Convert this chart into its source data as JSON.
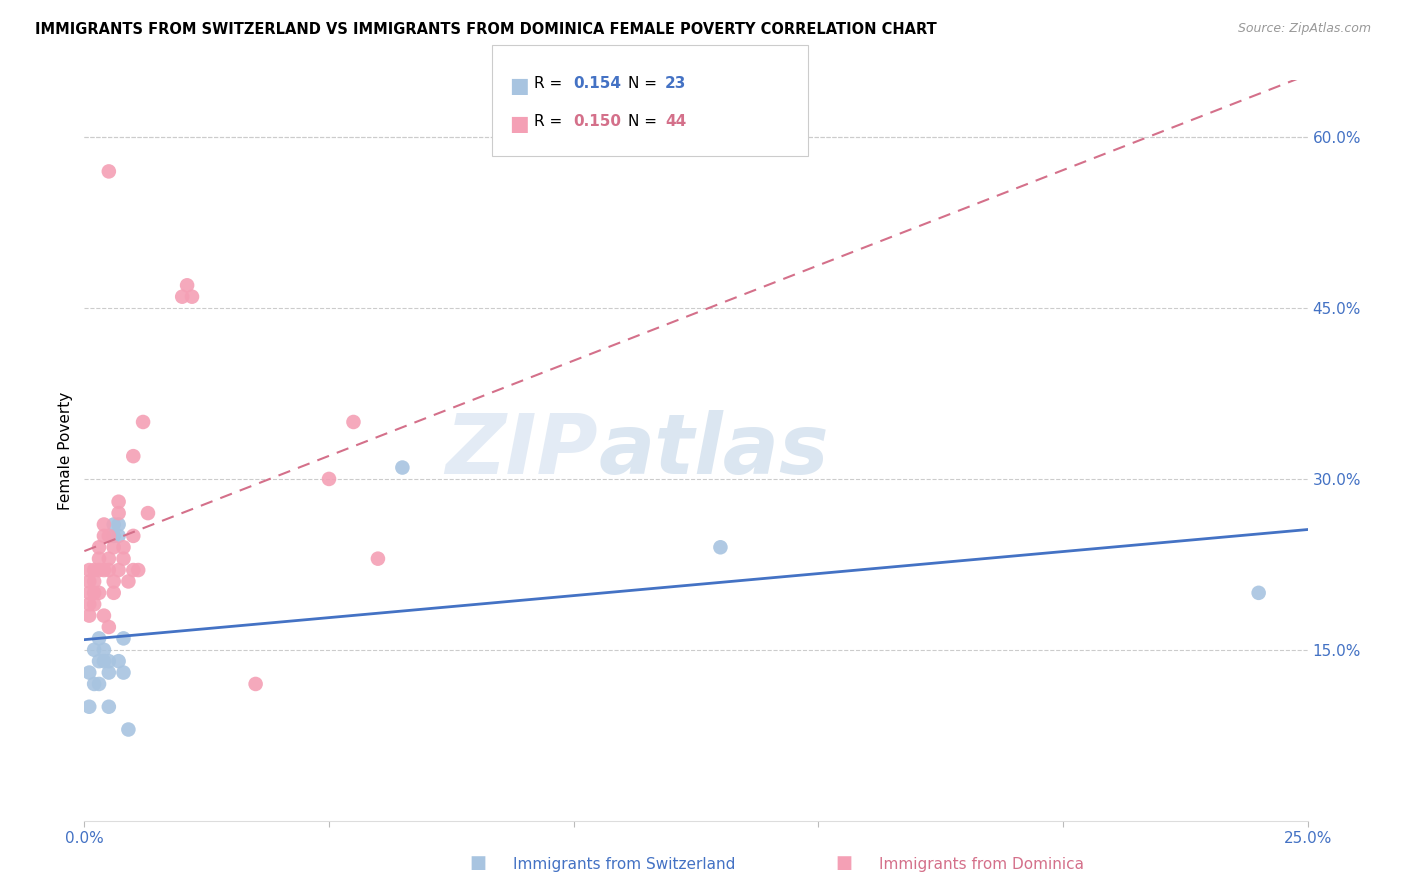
{
  "title": "IMMIGRANTS FROM SWITZERLAND VS IMMIGRANTS FROM DOMINICA FEMALE POVERTY CORRELATION CHART",
  "source": "Source: ZipAtlas.com",
  "xlabel_left": "Immigrants from Switzerland",
  "xlabel_right": "Immigrants from Dominica",
  "ylabel": "Female Poverty",
  "xlim": [
    0.0,
    0.25
  ],
  "ylim": [
    0.0,
    0.65
  ],
  "right_yticks": [
    0.15,
    0.3,
    0.45,
    0.6
  ],
  "right_yticklabels": [
    "15.0%",
    "30.0%",
    "45.0%",
    "60.0%"
  ],
  "xticks": [
    0.0,
    0.05,
    0.1,
    0.15,
    0.2,
    0.25
  ],
  "xticklabels": [
    "0.0%",
    "",
    "",
    "",
    "",
    "25.0%"
  ],
  "color_swiss": "#a8c4e0",
  "color_dominica": "#f4a0b5",
  "color_swiss_line": "#4472c4",
  "color_dominica_line": "#d4708a",
  "watermark_zip": "ZIP",
  "watermark_atlas": "atlas",
  "swiss_x": [
    0.001,
    0.001,
    0.002,
    0.002,
    0.003,
    0.003,
    0.003,
    0.004,
    0.004,
    0.005,
    0.005,
    0.005,
    0.006,
    0.006,
    0.007,
    0.007,
    0.007,
    0.008,
    0.008,
    0.009,
    0.065,
    0.13,
    0.24
  ],
  "swiss_y": [
    0.13,
    0.1,
    0.15,
    0.12,
    0.14,
    0.16,
    0.12,
    0.15,
    0.14,
    0.13,
    0.1,
    0.14,
    0.26,
    0.25,
    0.25,
    0.26,
    0.14,
    0.16,
    0.13,
    0.08,
    0.31,
    0.24,
    0.2
  ],
  "dominica_x": [
    0.001,
    0.001,
    0.001,
    0.001,
    0.001,
    0.002,
    0.002,
    0.002,
    0.002,
    0.003,
    0.003,
    0.003,
    0.003,
    0.004,
    0.004,
    0.004,
    0.004,
    0.005,
    0.005,
    0.005,
    0.005,
    0.006,
    0.006,
    0.006,
    0.007,
    0.007,
    0.007,
    0.008,
    0.008,
    0.009,
    0.01,
    0.01,
    0.01,
    0.011,
    0.012,
    0.013,
    0.02,
    0.021,
    0.022,
    0.035,
    0.05,
    0.055,
    0.06,
    0.005
  ],
  "dominica_y": [
    0.2,
    0.21,
    0.18,
    0.22,
    0.19,
    0.2,
    0.22,
    0.19,
    0.21,
    0.23,
    0.2,
    0.22,
    0.24,
    0.25,
    0.26,
    0.22,
    0.18,
    0.25,
    0.23,
    0.22,
    0.17,
    0.24,
    0.21,
    0.2,
    0.27,
    0.28,
    0.22,
    0.23,
    0.24,
    0.21,
    0.32,
    0.25,
    0.22,
    0.22,
    0.35,
    0.27,
    0.46,
    0.47,
    0.46,
    0.12,
    0.3,
    0.35,
    0.23,
    0.57
  ]
}
